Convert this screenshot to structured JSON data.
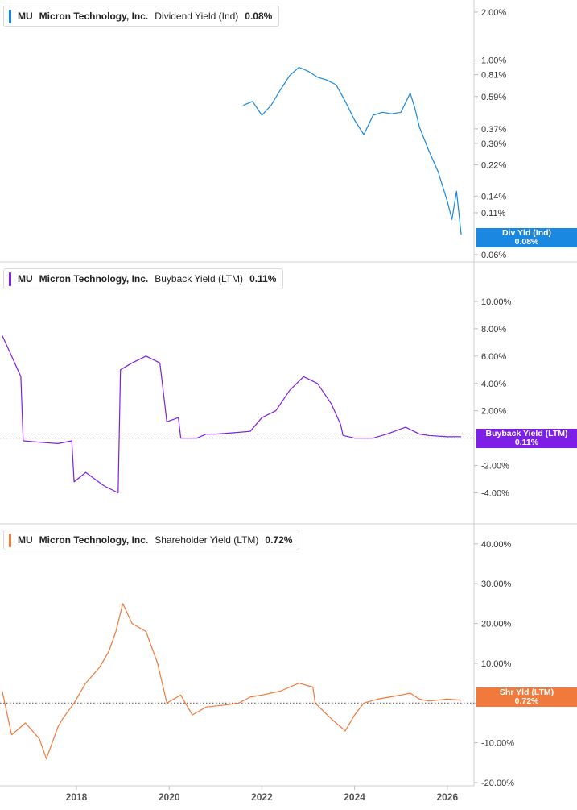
{
  "colors": {
    "dividend": "#1a88e0",
    "buyback": "#7d1fe6",
    "shareholder": "#f2793c"
  },
  "x_axis": {
    "ticks": [
      "2018",
      "2020",
      "2022",
      "2024",
      "2026"
    ]
  },
  "panels": [
    {
      "ticker": "MU",
      "company": "Micron Technology, Inc.",
      "metric": "Dividend Yield (Ind)",
      "value": "0.08%",
      "badge_title": "Div Yld (Ind)",
      "badge_value": "0.08%",
      "y_ticks": [
        "2.00%",
        "1.00%",
        "0.81%",
        "0.59%",
        "0.37%",
        "0.30%",
        "0.22%",
        "0.14%",
        "0.11%",
        "0.06%"
      ]
    },
    {
      "ticker": "MU",
      "company": "Micron Technology, Inc.",
      "metric": "Buyback Yield (LTM)",
      "value": "0.11%",
      "badge_title": "Buyback Yield (LTM)",
      "badge_value": "0.11%",
      "y_ticks": [
        "10.00%",
        "8.00%",
        "6.00%",
        "4.00%",
        "2.00%",
        "-2.00%",
        "-4.00%"
      ]
    },
    {
      "ticker": "MU",
      "company": "Micron Technology, Inc.",
      "metric": "Shareholder Yield (LTM)",
      "value": "0.72%",
      "badge_title": "Shr Yld (LTM)",
      "badge_value": "0.72%",
      "y_ticks": [
        "40.00%",
        "30.00%",
        "20.00%",
        "10.00%",
        "0.00%",
        "-10.00%",
        "-20.00%"
      ]
    }
  ],
  "chart_data": [
    {
      "type": "line",
      "title": "MU Micron Technology, Inc. Dividend Yield (Ind) 0.08%",
      "y_scale": "log",
      "ylim": [
        0.06,
        2.0
      ],
      "series": [
        {
          "name": "Dividend Yield (Ind)",
          "x": [
            2021.6,
            2021.8,
            2022.0,
            2022.2,
            2022.4,
            2022.6,
            2022.8,
            2023.0,
            2023.2,
            2023.4,
            2023.6,
            2023.8,
            2024.0,
            2024.2,
            2024.4,
            2024.6,
            2024.8,
            2025.0,
            2025.2,
            2025.3,
            2025.4,
            2025.6,
            2025.8,
            2026.0,
            2026.1,
            2026.2,
            2026.3
          ],
          "y": [
            0.52,
            0.55,
            0.45,
            0.52,
            0.65,
            0.8,
            0.9,
            0.85,
            0.78,
            0.75,
            0.7,
            0.55,
            0.42,
            0.34,
            0.45,
            0.47,
            0.46,
            0.47,
            0.62,
            0.5,
            0.38,
            0.27,
            0.2,
            0.13,
            0.1,
            0.15,
            0.08
          ]
        }
      ]
    },
    {
      "type": "line",
      "title": "MU Micron Technology, Inc. Buyback Yield (LTM) 0.11%",
      "ylim": [
        -4.5,
        11.0
      ],
      "reference_line": 0,
      "series": [
        {
          "name": "Buyback Yield (LTM)",
          "x": [
            2016.4,
            2016.6,
            2016.8,
            2016.85,
            2017.2,
            2017.6,
            2017.9,
            2017.95,
            2018.2,
            2018.6,
            2018.9,
            2018.95,
            2019.2,
            2019.5,
            2019.8,
            2019.95,
            2020.2,
            2020.25,
            2020.6,
            2020.8,
            2021.0,
            2021.4,
            2021.75,
            2022.0,
            2022.3,
            2022.6,
            2022.9,
            2023.2,
            2023.5,
            2023.7,
            2023.75,
            2024.0,
            2024.4,
            2024.7,
            2025.1,
            2025.4,
            2025.6,
            2026.0,
            2026.3
          ],
          "y": [
            7.5,
            6.0,
            4.5,
            -0.2,
            -0.3,
            -0.4,
            -0.2,
            -3.2,
            -2.5,
            -3.5,
            -4.0,
            5.0,
            5.5,
            6.0,
            5.5,
            1.2,
            1.5,
            0.0,
            0.0,
            0.3,
            0.3,
            0.4,
            0.5,
            1.5,
            2.0,
            3.5,
            4.5,
            4.0,
            2.5,
            1.0,
            0.2,
            0.0,
            0.0,
            0.3,
            0.8,
            0.3,
            0.2,
            0.1,
            0.11
          ]
        }
      ]
    },
    {
      "type": "line",
      "title": "MU Micron Technology, Inc. Shareholder Yield (LTM) 0.72%",
      "ylim": [
        -20.0,
        42.0
      ],
      "reference_line": 0,
      "series": [
        {
          "name": "Shareholder Yield (LTM)",
          "x": [
            2016.4,
            2016.6,
            2016.9,
            2017.2,
            2017.35,
            2017.6,
            2017.7,
            2017.95,
            2018.2,
            2018.5,
            2018.7,
            2018.85,
            2019.0,
            2019.2,
            2019.5,
            2019.75,
            2019.95,
            2020.25,
            2020.5,
            2020.8,
            2021.2,
            2021.5,
            2021.75,
            2022.0,
            2022.4,
            2022.8,
            2023.1,
            2023.15,
            2023.5,
            2023.8,
            2024.0,
            2024.2,
            2024.5,
            2025.0,
            2025.2,
            2025.4,
            2025.6,
            2026.0,
            2026.3
          ],
          "y": [
            3.0,
            -8.0,
            -5.0,
            -9.0,
            -14.0,
            -6.0,
            -4.0,
            0.0,
            5.0,
            9.0,
            13.0,
            18.0,
            25.0,
            20.0,
            18.0,
            10.0,
            0.0,
            2.0,
            -3.0,
            -1.0,
            -0.5,
            0.0,
            1.5,
            2.0,
            3.0,
            5.0,
            4.0,
            0.0,
            -4.0,
            -7.0,
            -3.0,
            0.0,
            1.0,
            2.0,
            2.5,
            1.0,
            0.5,
            1.0,
            0.72
          ]
        }
      ]
    }
  ]
}
